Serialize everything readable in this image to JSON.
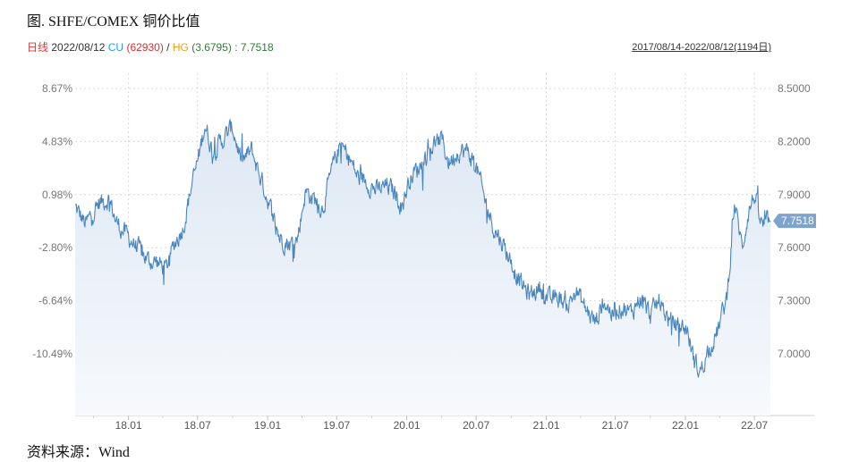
{
  "title": "图. SHFE/COMEX 铜价比值",
  "legend": {
    "label": "日线",
    "date": "2022/08/12",
    "cu_label": "CU",
    "cu_value": "(62930)",
    "sep": "/",
    "hg_label": "HG",
    "hg_value": "(3.6795)",
    "ratio": ": 7.7518",
    "colors": {
      "label": "#e53935",
      "cu": "#2a9df4",
      "cu_value": "#d32f2f",
      "hg": "#f39c12",
      "hg_value": "#2e7d32",
      "ratio": "#2e7d32"
    }
  },
  "date_range": "2017/08/14-2022/08/12(1194日)",
  "source": "资料来源：Wind",
  "chart_data": {
    "type": "area",
    "x_ticks": [
      "18.01",
      "18.07",
      "19.01",
      "19.07",
      "20.01",
      "20.07",
      "21.01",
      "21.07",
      "22.01",
      "22.07"
    ],
    "left_ticks": [
      "8.67%",
      "4.83%",
      "0.98%",
      "-2.80%",
      "-6.64%",
      "-10.49%"
    ],
    "right_ticks": [
      "8.5000",
      "8.2000",
      "7.9000",
      "7.6000",
      "7.3000",
      "7.0000"
    ],
    "y_range": [
      6.67,
      8.51
    ],
    "last_value_label": "7.7518",
    "grid": true,
    "line_color": "#4a86be",
    "fill_color": "#e9f0f8",
    "series_keypoints": [
      [
        "2017-08-14",
        7.83
      ],
      [
        "2017-09-10",
        7.73
      ],
      [
        "2017-10-15",
        7.85
      ],
      [
        "2017-11-10",
        7.88
      ],
      [
        "2017-12-01",
        7.74
      ],
      [
        "2018-01-01",
        7.66
      ],
      [
        "2018-02-01",
        7.58
      ],
      [
        "2018-02-20",
        7.53
      ],
      [
        "2018-03-15",
        7.52
      ],
      [
        "2018-04-10",
        7.48
      ],
      [
        "2018-05-01",
        7.62
      ],
      [
        "2018-05-25",
        7.72
      ],
      [
        "2018-06-15",
        7.95
      ],
      [
        "2018-07-05",
        8.12
      ],
      [
        "2018-07-20",
        8.3
      ],
      [
        "2018-08-10",
        8.14
      ],
      [
        "2018-09-01",
        8.2
      ],
      [
        "2018-10-01",
        8.28
      ],
      [
        "2018-10-25",
        8.08
      ],
      [
        "2018-11-20",
        8.15
      ],
      [
        "2018-12-10",
        8.02
      ],
      [
        "2019-01-05",
        7.85
      ],
      [
        "2019-02-01",
        7.66
      ],
      [
        "2019-03-01",
        7.62
      ],
      [
        "2019-03-20",
        7.65
      ],
      [
        "2019-04-10",
        7.92
      ],
      [
        "2019-05-01",
        7.88
      ],
      [
        "2019-05-25",
        7.82
      ],
      [
        "2019-06-20",
        8.05
      ],
      [
        "2019-07-10",
        8.18
      ],
      [
        "2019-08-01",
        8.12
      ],
      [
        "2019-08-25",
        8.0
      ],
      [
        "2019-09-20",
        7.97
      ],
      [
        "2019-10-15",
        7.92
      ],
      [
        "2019-11-10",
        7.95
      ],
      [
        "2019-12-01",
        7.91
      ],
      [
        "2019-12-20",
        7.84
      ],
      [
        "2020-01-10",
        8.0
      ],
      [
        "2020-02-01",
        8.05
      ],
      [
        "2020-02-20",
        8.12
      ],
      [
        "2020-03-10",
        8.18
      ],
      [
        "2020-04-01",
        8.22
      ],
      [
        "2020-04-20",
        8.08
      ],
      [
        "2020-05-15",
        8.15
      ],
      [
        "2020-06-10",
        8.14
      ],
      [
        "2020-07-01",
        8.06
      ],
      [
        "2020-07-20",
        7.9
      ],
      [
        "2020-08-15",
        7.72
      ],
      [
        "2020-09-10",
        7.62
      ],
      [
        "2020-10-01",
        7.52
      ],
      [
        "2020-10-25",
        7.4
      ],
      [
        "2020-11-20",
        7.33
      ],
      [
        "2020-12-15",
        7.38
      ],
      [
        "2021-01-10",
        7.3
      ],
      [
        "2021-02-01",
        7.32
      ],
      [
        "2021-03-01",
        7.28
      ],
      [
        "2021-03-20",
        7.36
      ],
      [
        "2021-04-15",
        7.25
      ],
      [
        "2021-05-10",
        7.18
      ],
      [
        "2021-06-01",
        7.3
      ],
      [
        "2021-06-25",
        7.22
      ],
      [
        "2021-07-15",
        7.27
      ],
      [
        "2021-08-10",
        7.23
      ],
      [
        "2021-09-05",
        7.32
      ],
      [
        "2021-10-01",
        7.22
      ],
      [
        "2021-10-25",
        7.3
      ],
      [
        "2021-11-20",
        7.18
      ],
      [
        "2021-12-15",
        7.16
      ],
      [
        "2022-01-05",
        7.14
      ],
      [
        "2022-01-25",
        6.95
      ],
      [
        "2022-02-10",
        6.9
      ],
      [
        "2022-03-01",
        7.02
      ],
      [
        "2022-03-25",
        7.12
      ],
      [
        "2022-04-20",
        7.32
      ],
      [
        "2022-05-10",
        7.85
      ],
      [
        "2022-05-30",
        7.6
      ],
      [
        "2022-06-15",
        7.8
      ],
      [
        "2022-07-01",
        7.9
      ],
      [
        "2022-07-20",
        7.72
      ],
      [
        "2022-08-12",
        7.7518
      ]
    ]
  }
}
